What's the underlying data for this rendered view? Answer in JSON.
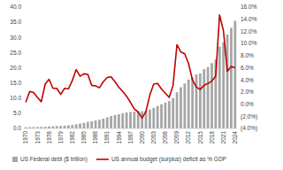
{
  "chart_data": {
    "type": "bar",
    "categories": [
      "1970",
      null,
      null,
      "1973",
      null,
      null,
      "1976",
      null,
      null,
      "1979",
      null,
      null,
      "1982",
      null,
      null,
      "1985",
      null,
      null,
      "1988",
      null,
      null,
      "1991",
      null,
      null,
      "1994",
      null,
      null,
      "1997",
      null,
      null,
      "2000",
      null,
      null,
      "2003",
      null,
      null,
      "2006",
      null,
      null,
      "2009",
      null,
      null,
      "2012",
      null,
      null,
      "2015",
      null,
      null,
      "2018",
      null,
      null,
      "2021",
      null,
      null,
      "2024"
    ],
    "series": [
      {
        "name": "US Federal debt ($ trillion)",
        "type": "bar",
        "color": "#a6a6a6",
        "values": [
          0.37,
          0.41,
          0.44,
          0.47,
          0.48,
          0.54,
          0.63,
          0.71,
          0.78,
          0.83,
          0.91,
          1.0,
          1.14,
          1.38,
          1.57,
          1.82,
          2.13,
          2.35,
          2.6,
          2.86,
          3.23,
          3.67,
          4.06,
          4.41,
          4.69,
          4.97,
          5.22,
          5.41,
          5.53,
          5.66,
          5.67,
          5.81,
          6.23,
          6.78,
          7.38,
          7.93,
          8.51,
          9.01,
          10.02,
          11.91,
          13.56,
          14.79,
          16.07,
          16.74,
          17.82,
          18.15,
          19.57,
          20.24,
          21.52,
          22.72,
          26.95,
          28.43,
          30.93,
          33.17,
          35.46
        ]
      },
      {
        "name": "US annual budget (surplus) deficit as % GDP",
        "type": "line",
        "color": "#c00000",
        "axis": "y2",
        "values": [
          0.3,
          2.1,
          1.9,
          1.1,
          0.4,
          3.3,
          4.1,
          2.6,
          2.6,
          1.6,
          2.6,
          2.5,
          3.9,
          5.7,
          4.6,
          5.0,
          4.9,
          3.1,
          3.0,
          2.7,
          3.7,
          4.4,
          4.5,
          3.7,
          2.8,
          2.1,
          1.3,
          0.3,
          -0.8,
          -1.3,
          -2.3,
          -1.2,
          1.5,
          3.3,
          3.4,
          2.5,
          1.8,
          1.1,
          3.1,
          9.8,
          8.6,
          8.3,
          6.7,
          4.0,
          2.8,
          2.4,
          3.1,
          3.4,
          3.8,
          4.6,
          14.7,
          12.1,
          5.4,
          6.2,
          6.0
        ]
      }
    ],
    "ylim": [
      0,
      40
    ],
    "yticks": [
      {
        "value": 0,
        "label": "0.0"
      },
      {
        "value": 5,
        "label": "5.0"
      },
      {
        "value": 10,
        "label": "10.0"
      },
      {
        "value": 15,
        "label": "15.0"
      },
      {
        "value": 20,
        "label": "20.0"
      },
      {
        "value": 25,
        "label": "25.0"
      },
      {
        "value": 30,
        "label": "30.0"
      },
      {
        "value": 35,
        "label": "35.0"
      },
      {
        "value": 40,
        "label": "40.0"
      }
    ],
    "y2lim": [
      -4,
      16
    ],
    "y2ticks": [
      {
        "value": -4,
        "label": "(4.0%)"
      },
      {
        "value": -2,
        "label": "(2.0%)"
      },
      {
        "value": 0,
        "label": "0.0%"
      },
      {
        "value": 2,
        "label": "2.0%"
      },
      {
        "value": 4,
        "label": "4.0%"
      },
      {
        "value": 6,
        "label": "6.0%"
      },
      {
        "value": 8,
        "label": "8.0%"
      },
      {
        "value": 10,
        "label": "10.0%"
      },
      {
        "value": 12,
        "label": "12.0%"
      },
      {
        "value": 14,
        "label": "14.0%"
      },
      {
        "value": 16,
        "label": "16.0%"
      }
    ],
    "grid": false,
    "legend": "bottom"
  }
}
